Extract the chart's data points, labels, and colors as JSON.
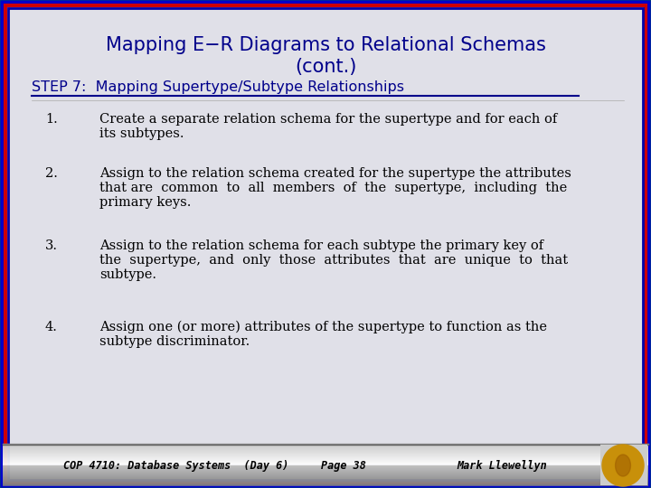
{
  "title_line1": "Mapping E−R Diagrams to Relational Schemas",
  "title_line2": "(cont.)",
  "step_heading": "STEP 7:  Mapping Supertype/Subtype Relationships",
  "items": [
    {
      "num": "1.",
      "text": "Create a separate relation schema for the supertype and for each of\nits subtypes."
    },
    {
      "num": "2.",
      "text": "Assign to the relation schema created for the supertype the attributes\nthat are  common  to  all  members  of  the  supertype,  including  the\nprimary keys."
    },
    {
      "num": "3.",
      "text": "Assign to the relation schema for each subtype the primary key of\nthe  supertype,  and  only  those  attributes  that  are  unique  to  that\nsubtype."
    },
    {
      "num": "4.",
      "text": "Assign one (or more) attributes of the supertype to function as the\nsubtype discriminator."
    }
  ],
  "footer_left": "COP 4710: Database Systems  (Day 6)",
  "footer_center": "Page 38",
  "footer_right": "Mark Llewellyn",
  "bg_color": "#e0e0e8",
  "border_color1": "#00aa00",
  "border_color2": "#0000cc",
  "border_color3": "#cc0000",
  "border_color4": "#0000aa",
  "title_color": "#00008B",
  "step_color": "#00008B",
  "text_color": "#000000",
  "footer_text_color": "#000000",
  "item_fontsize": 10.5,
  "title_fontsize": 15.0,
  "step_fontsize": 11.5
}
